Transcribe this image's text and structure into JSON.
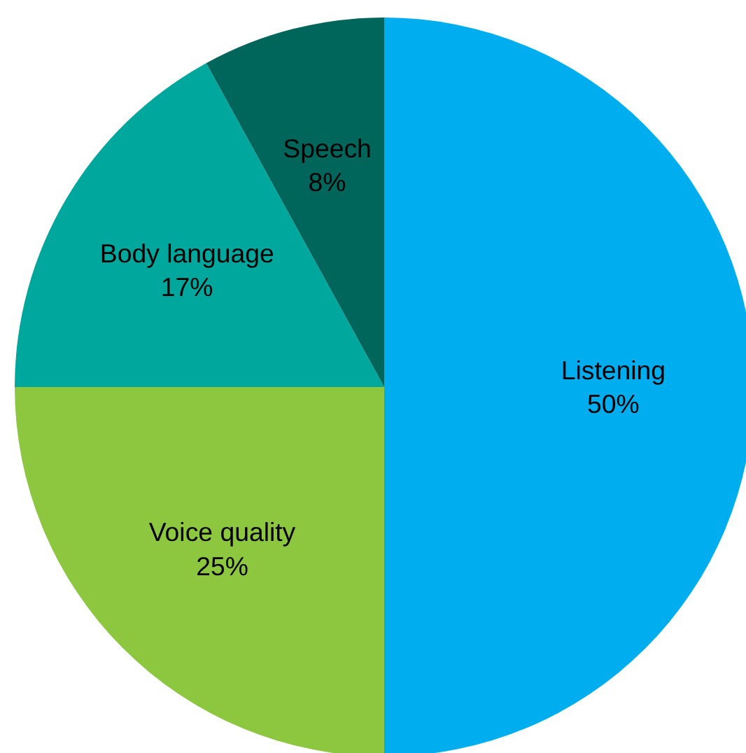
{
  "chart_data": {
    "type": "pie",
    "categories": [
      "Listening",
      "Voice quality",
      "Body language",
      "Speech"
    ],
    "values": [
      50,
      25,
      17,
      8
    ],
    "colors": [
      "#00aeef",
      "#8dc63f",
      "#00a79d",
      "#00665c"
    ],
    "value_labels": [
      "50%",
      "25%",
      "17%",
      "8%"
    ]
  }
}
